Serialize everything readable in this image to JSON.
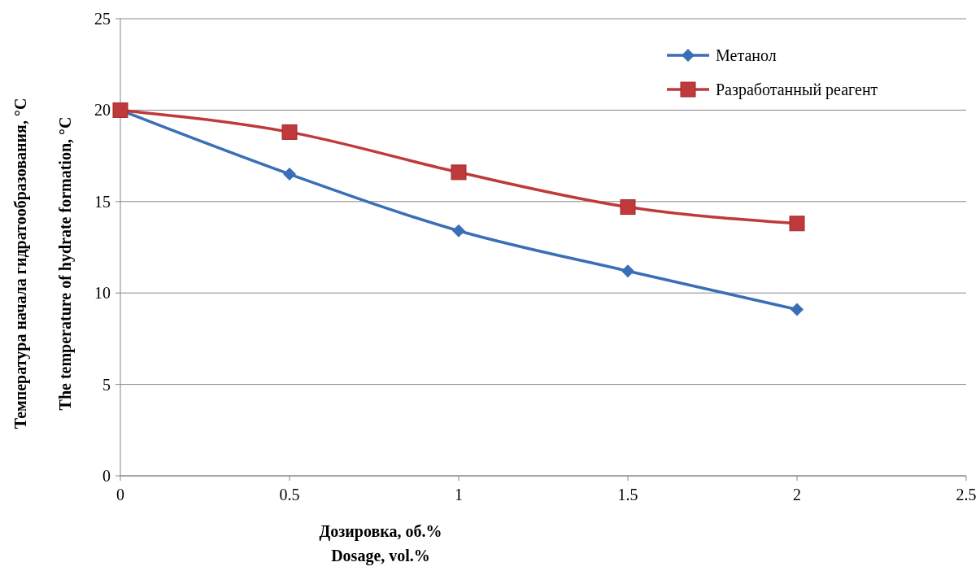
{
  "chart_data": {
    "type": "line",
    "xlabel": "Дозировка, об.%\nDosage, vol.%",
    "ylabel": "Температура начала гидратообразования, °C\nThe temperature of hydrate formation, °C",
    "x": [
      0,
      0.5,
      1,
      1.5,
      2
    ],
    "series": [
      {
        "name": "Метанол",
        "color": "#3a6fb8",
        "values": [
          20,
          16.5,
          13.4,
          11.2,
          9.1
        ],
        "marker": "diamond"
      },
      {
        "name": "Разработанный реагент",
        "color": "#c0393b",
        "values": [
          20,
          18.8,
          16.6,
          14.7,
          13.8
        ],
        "marker": "square"
      }
    ],
    "xlim": [
      0,
      2.5
    ],
    "xticks": [
      0,
      0.5,
      1,
      1.5,
      2,
      2.5
    ],
    "ylim": [
      0,
      25
    ],
    "yticks": [
      0,
      5,
      10,
      15,
      20,
      25
    ],
    "grid": "y",
    "legend": "top right"
  }
}
